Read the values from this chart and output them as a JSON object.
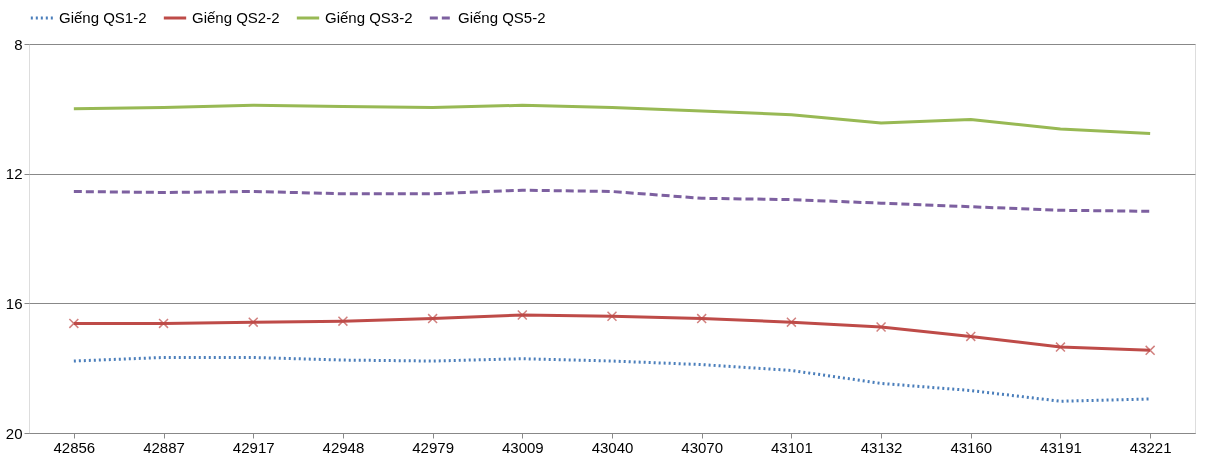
{
  "chart_data": {
    "type": "line",
    "categories": [
      "42856",
      "42887",
      "42917",
      "42948",
      "42979",
      "43009",
      "43040",
      "43070",
      "43101",
      "43132",
      "43160",
      "43191",
      "43221"
    ],
    "series": [
      {
        "name": "Giếng QS1-2",
        "color": "#4a7ebb",
        "line_style": "dotted",
        "marker": "none",
        "values": [
          17.78,
          17.67,
          17.67,
          17.75,
          17.78,
          17.71,
          17.78,
          17.89,
          18.07,
          18.47,
          18.69,
          19.02,
          18.95
        ]
      },
      {
        "name": "Giếng QS2-2",
        "color": "#be4b48",
        "line_style": "solid",
        "marker": "cross",
        "values": [
          16.62,
          16.62,
          16.58,
          16.55,
          16.47,
          16.36,
          16.4,
          16.47,
          16.58,
          16.73,
          17.02,
          17.35,
          17.45
        ]
      },
      {
        "name": "Giếng QS3-2",
        "color": "#98b954",
        "line_style": "solid",
        "marker": "none",
        "values": [
          10.0,
          9.96,
          9.89,
          9.93,
          9.96,
          9.89,
          9.96,
          10.07,
          10.18,
          10.44,
          10.33,
          10.62,
          10.76
        ]
      },
      {
        "name": "Giếng QS5-2",
        "color": "#7d60a0",
        "line_style": "dashed",
        "marker": "none",
        "values": [
          12.55,
          12.58,
          12.55,
          12.62,
          12.62,
          12.51,
          12.55,
          12.76,
          12.8,
          12.91,
          13.02,
          13.13,
          13.16
        ]
      }
    ],
    "ylim": [
      20,
      8
    ],
    "yticks": [
      8,
      12,
      16,
      20
    ],
    "grid": "y",
    "legend": "top"
  }
}
